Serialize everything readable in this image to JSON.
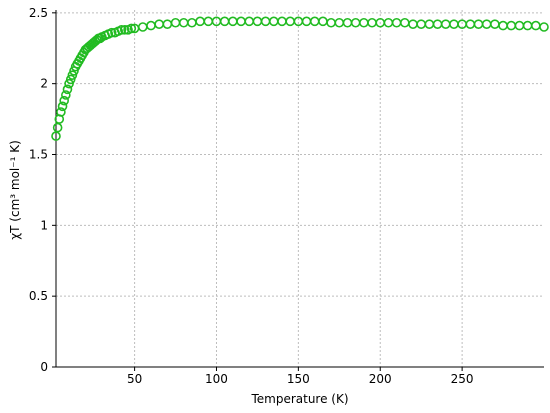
{
  "chart_data": {
    "type": "scatter",
    "title": "",
    "xlabel": "Temperature (K)",
    "ylabel": "χT (cm³ mol⁻¹ K)",
    "xlim": [
      2,
      300
    ],
    "ylim": [
      0,
      2.52
    ],
    "xticks": [
      50,
      100,
      150,
      200,
      250
    ],
    "yticks": [
      0,
      0.5,
      1,
      1.5,
      2,
      2.5
    ],
    "ytick_labels": [
      "0",
      "0.5",
      "1",
      "1.5",
      "2",
      "2.5"
    ],
    "grid": true,
    "legend": "none",
    "marker": "open-circle",
    "series": [
      {
        "color": "#22bb22",
        "x": [
          2,
          3,
          4,
          5,
          6,
          7,
          8,
          9,
          10,
          11,
          12,
          13,
          14,
          15,
          16,
          17,
          18,
          19,
          20,
          21,
          22,
          23,
          24,
          25,
          26,
          27,
          28,
          29,
          30,
          32,
          34,
          36,
          38,
          40,
          42,
          44,
          46,
          48,
          50,
          55,
          60,
          65,
          70,
          75,
          80,
          85,
          90,
          95,
          100,
          105,
          110,
          115,
          120,
          125,
          130,
          135,
          140,
          145,
          150,
          155,
          160,
          165,
          170,
          175,
          180,
          185,
          190,
          195,
          200,
          205,
          210,
          215,
          220,
          225,
          230,
          235,
          240,
          245,
          250,
          255,
          260,
          265,
          270,
          275,
          280,
          285,
          290,
          295,
          300
        ],
        "y": [
          1.63,
          1.69,
          1.75,
          1.8,
          1.84,
          1.88,
          1.92,
          1.96,
          2.0,
          2.03,
          2.06,
          2.09,
          2.12,
          2.14,
          2.16,
          2.18,
          2.2,
          2.22,
          2.24,
          2.25,
          2.26,
          2.27,
          2.28,
          2.29,
          2.3,
          2.31,
          2.32,
          2.32,
          2.33,
          2.34,
          2.35,
          2.36,
          2.36,
          2.37,
          2.38,
          2.38,
          2.38,
          2.39,
          2.39,
          2.4,
          2.41,
          2.42,
          2.42,
          2.43,
          2.43,
          2.43,
          2.44,
          2.44,
          2.44,
          2.44,
          2.44,
          2.44,
          2.44,
          2.44,
          2.44,
          2.44,
          2.44,
          2.44,
          2.44,
          2.44,
          2.44,
          2.44,
          2.43,
          2.43,
          2.43,
          2.43,
          2.43,
          2.43,
          2.43,
          2.43,
          2.43,
          2.43,
          2.42,
          2.42,
          2.42,
          2.42,
          2.42,
          2.42,
          2.42,
          2.42,
          2.42,
          2.42,
          2.42,
          2.41,
          2.41,
          2.41,
          2.41,
          2.41,
          2.4
        ]
      }
    ]
  }
}
